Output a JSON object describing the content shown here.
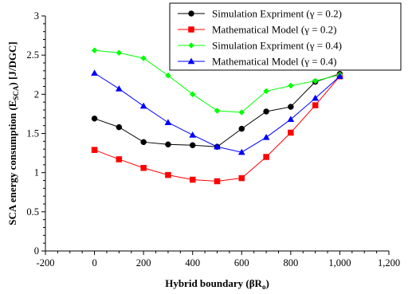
{
  "chart_data": {
    "type": "line",
    "xlabel": "Hybrid boundary (βR",
    "xlabel_sub": "o",
    "xlabel_suffix": ")",
    "ylabel": "SCA energy consumption (E",
    "ylabel_sub": "SCA",
    "ylabel_suffix": ") [J/DGC]",
    "xlim": [
      -200,
      1200
    ],
    "ylim": [
      0,
      3
    ],
    "xticks": [
      -200,
      0,
      200,
      400,
      600,
      800,
      1000,
      1200
    ],
    "xtick_labels": [
      "-200",
      "0",
      "200",
      "400",
      "600",
      "800",
      "1,000",
      "1,200"
    ],
    "yticks": [
      0,
      0.5,
      1,
      1.5,
      2,
      2.5,
      3
    ],
    "ytick_labels": [
      "0",
      "0.5",
      "1",
      "1.5",
      "2",
      "2.5",
      "3"
    ],
    "grid": false,
    "legend_position": "top-right",
    "x": [
      0,
      100,
      200,
      300,
      400,
      500,
      600,
      700,
      800,
      900,
      1000
    ],
    "series": [
      {
        "name": "Simulation Expriment (γ = 0.2)",
        "color": "#000000",
        "marker": "circle",
        "values": [
          1.69,
          1.58,
          1.39,
          1.36,
          1.35,
          1.33,
          1.56,
          1.78,
          1.84,
          2.16,
          2.26
        ]
      },
      {
        "name": "Mathematical Model (γ = 0.2)",
        "color": "#ff0000",
        "marker": "square",
        "values": [
          1.29,
          1.17,
          1.06,
          0.97,
          0.91,
          0.89,
          0.93,
          1.2,
          1.51,
          1.86,
          2.23
        ]
      },
      {
        "name": "Simulation Expriment (γ = 0.4)",
        "color": "#00ff00",
        "marker": "diamond",
        "values": [
          2.56,
          2.53,
          2.46,
          2.24,
          2.0,
          1.79,
          1.77,
          2.04,
          2.11,
          2.17,
          2.25
        ]
      },
      {
        "name": "Mathematical Model (γ = 0.4)",
        "color": "#0000ff",
        "marker": "triangle",
        "values": [
          2.27,
          2.07,
          1.85,
          1.64,
          1.48,
          1.33,
          1.26,
          1.45,
          1.68,
          1.95,
          2.23
        ]
      }
    ]
  }
}
